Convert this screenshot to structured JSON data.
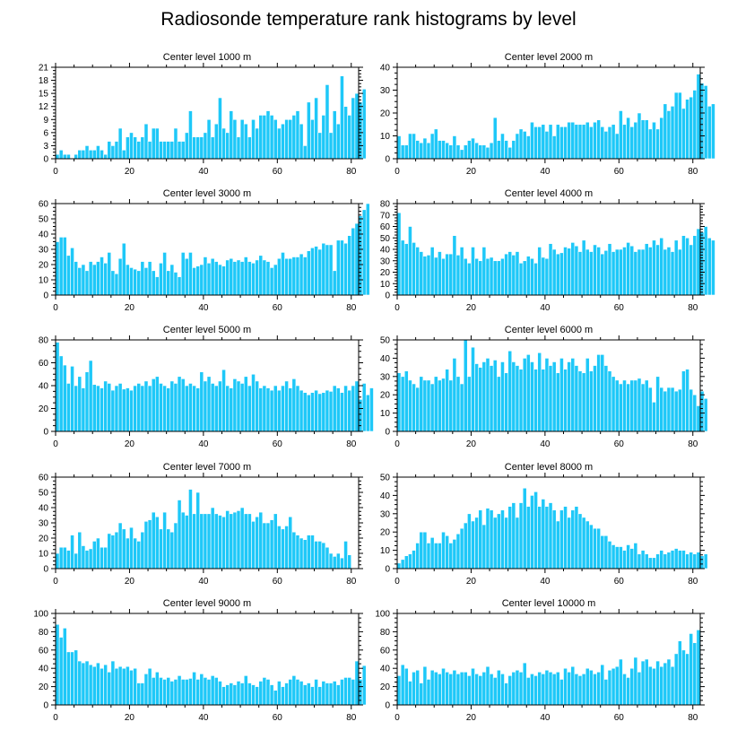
{
  "title": "Radiosonde temperature rank histograms by level",
  "colors": {
    "bar": "#1ec8f8",
    "bar_edge": "#ffffff",
    "axis": "#000000"
  },
  "chart_data": [
    {
      "type": "bar",
      "title": "Center level 1000 m",
      "xlabel": "",
      "ylabel": "",
      "xlim": [
        0,
        82
      ],
      "ylim": [
        0,
        21
      ],
      "yticks": [
        0,
        3,
        6,
        9,
        12,
        15,
        18,
        21
      ],
      "xticks": [
        0,
        20,
        40,
        60,
        80
      ],
      "values": [
        1,
        2,
        1,
        1,
        0,
        1,
        2,
        2,
        3,
        2,
        2,
        3,
        2,
        1,
        4,
        3,
        4,
        7,
        2,
        5,
        6,
        5,
        4,
        5,
        8,
        4,
        7,
        7,
        4,
        4,
        4,
        4,
        7,
        4,
        4,
        6,
        11,
        5,
        5,
        5,
        6,
        9,
        5,
        8,
        14,
        7,
        6,
        11,
        9,
        5,
        9,
        8,
        5,
        9,
        7,
        10,
        10,
        11,
        10,
        9,
        7,
        8,
        9,
        9,
        10,
        11,
        8,
        3,
        13,
        9,
        14,
        6,
        10,
        17,
        6,
        11,
        8,
        19,
        12,
        10,
        14,
        15,
        13,
        16
      ]
    },
    {
      "type": "bar",
      "title": "Center level 2000 m",
      "xlabel": "",
      "ylabel": "",
      "xlim": [
        0,
        82
      ],
      "ylim": [
        0,
        40
      ],
      "yticks": [
        0,
        10,
        20,
        30,
        40
      ],
      "xticks": [
        0,
        20,
        40,
        60,
        80
      ],
      "values": [
        10,
        6,
        6,
        11,
        11,
        8,
        7,
        9,
        7,
        11,
        13,
        8,
        8,
        7,
        6,
        10,
        6,
        4,
        6,
        8,
        9,
        7,
        6,
        6,
        5,
        7,
        18,
        8,
        11,
        8,
        5,
        8,
        11,
        13,
        12,
        10,
        16,
        14,
        14,
        15,
        12,
        15,
        10,
        15,
        14,
        14,
        16,
        16,
        15,
        15,
        15,
        16,
        14,
        16,
        17,
        14,
        12,
        14,
        15,
        11,
        21,
        15,
        18,
        14,
        16,
        20,
        17,
        17,
        13,
        16,
        13,
        18,
        24,
        21,
        23,
        29,
        29,
        22,
        26,
        27,
        30,
        37,
        33,
        32,
        23,
        24
      ]
    },
    {
      "type": "bar",
      "title": "Center level 3000 m",
      "xlabel": "",
      "ylabel": "",
      "xlim": [
        0,
        82
      ],
      "ylim": [
        0,
        60
      ],
      "yticks": [
        0,
        10,
        20,
        30,
        40,
        50,
        60
      ],
      "xticks": [
        0,
        20,
        40,
        60,
        80
      ],
      "values": [
        35,
        38,
        38,
        26,
        31,
        22,
        18,
        20,
        16,
        22,
        20,
        22,
        25,
        21,
        28,
        16,
        14,
        24,
        34,
        20,
        18,
        17,
        16,
        22,
        18,
        22,
        16,
        12,
        21,
        28,
        16,
        20,
        15,
        12,
        28,
        24,
        28,
        18,
        19,
        20,
        25,
        21,
        24,
        22,
        20,
        19,
        23,
        24,
        22,
        23,
        22,
        25,
        22,
        21,
        23,
        26,
        23,
        22,
        18,
        20,
        24,
        28,
        24,
        24,
        25,
        25,
        27,
        25,
        29,
        31,
        32,
        30,
        34,
        33,
        33,
        16,
        36,
        36,
        34,
        39,
        44,
        47,
        52,
        56,
        60
      ]
    },
    {
      "type": "bar",
      "title": "Center level 4000 m",
      "xlabel": "",
      "ylabel": "",
      "xlim": [
        0,
        82
      ],
      "ylim": [
        0,
        80
      ],
      "yticks": [
        0,
        10,
        20,
        30,
        40,
        50,
        60,
        70,
        80
      ],
      "xticks": [
        0,
        20,
        40,
        60,
        80
      ],
      "values": [
        72,
        48,
        45,
        60,
        46,
        42,
        38,
        34,
        35,
        42,
        33,
        38,
        32,
        36,
        36,
        52,
        35,
        42,
        32,
        28,
        42,
        32,
        30,
        42,
        32,
        33,
        30,
        30,
        32,
        36,
        38,
        35,
        38,
        28,
        30,
        34,
        32,
        28,
        42,
        33,
        32,
        45,
        40,
        36,
        37,
        42,
        41,
        46,
        43,
        38,
        48,
        40,
        38,
        44,
        42,
        36,
        39,
        45,
        38,
        40,
        40,
        42,
        46,
        43,
        38,
        40,
        40,
        45,
        42,
        48,
        44,
        50,
        40,
        42,
        38,
        48,
        40,
        52,
        50,
        44,
        52,
        58,
        55,
        60,
        50,
        48
      ]
    },
    {
      "type": "bar",
      "title": "Center level 5000 m",
      "xlabel": "",
      "ylabel": "",
      "xlim": [
        0,
        82
      ],
      "ylim": [
        0,
        80
      ],
      "yticks": [
        0,
        20,
        40,
        60,
        80
      ],
      "xticks": [
        0,
        20,
        40,
        60,
        80
      ],
      "values": [
        78,
        66,
        58,
        42,
        57,
        40,
        48,
        38,
        52,
        62,
        41,
        40,
        38,
        44,
        42,
        36,
        40,
        42,
        37,
        38,
        36,
        40,
        42,
        40,
        44,
        40,
        46,
        48,
        42,
        40,
        38,
        44,
        42,
        48,
        46,
        40,
        42,
        40,
        38,
        52,
        44,
        48,
        42,
        40,
        44,
        54,
        40,
        38,
        46,
        44,
        42,
        48,
        40,
        50,
        44,
        38,
        40,
        38,
        36,
        40,
        36,
        40,
        44,
        38,
        46,
        40,
        36,
        34,
        32,
        34,
        36,
        33,
        34,
        36,
        35,
        40,
        38,
        34,
        40,
        36,
        40,
        44,
        28,
        42,
        32,
        38
      ]
    },
    {
      "type": "bar",
      "title": "Center level 6000 m",
      "xlabel": "",
      "ylabel": "",
      "xlim": [
        0,
        82
      ],
      "ylim": [
        0,
        50
      ],
      "yticks": [
        0,
        10,
        20,
        30,
        40,
        50
      ],
      "xticks": [
        0,
        20,
        40,
        60,
        80
      ],
      "values": [
        32,
        30,
        33,
        28,
        26,
        24,
        30,
        28,
        28,
        26,
        30,
        28,
        29,
        34,
        28,
        40,
        30,
        26,
        50,
        30,
        46,
        37,
        35,
        38,
        40,
        36,
        39,
        30,
        38,
        32,
        44,
        38,
        36,
        34,
        40,
        42,
        38,
        34,
        43,
        34,
        40,
        36,
        38,
        32,
        40,
        34,
        38,
        40,
        36,
        33,
        32,
        40,
        33,
        36,
        42,
        42,
        36,
        33,
        30,
        28,
        26,
        28,
        26,
        28,
        28,
        29,
        26,
        28,
        24,
        16,
        30,
        24,
        22,
        24,
        24,
        22,
        23,
        33,
        34,
        23,
        20,
        14,
        22,
        18
      ]
    },
    {
      "type": "bar",
      "title": "Center level 7000 m",
      "xlabel": "",
      "ylabel": "",
      "xlim": [
        0,
        82
      ],
      "ylim": [
        0,
        60
      ],
      "yticks": [
        0,
        10,
        20,
        30,
        40,
        50,
        60
      ],
      "xticks": [
        0,
        20,
        40,
        60,
        80
      ],
      "values": [
        10,
        14,
        14,
        12,
        22,
        10,
        24,
        15,
        12,
        13,
        18,
        20,
        14,
        14,
        23,
        22,
        24,
        30,
        26,
        20,
        27,
        20,
        18,
        24,
        31,
        32,
        37,
        34,
        26,
        37,
        26,
        24,
        30,
        45,
        37,
        35,
        52,
        36,
        50,
        36,
        36,
        36,
        40,
        36,
        35,
        34,
        38,
        36,
        37,
        38,
        40,
        36,
        36,
        31,
        34,
        37,
        30,
        30,
        32,
        36,
        28,
        26,
        28,
        34,
        24,
        22,
        20,
        19,
        22,
        22,
        18,
        18,
        17,
        14,
        10,
        8,
        10,
        7,
        18,
        9
      ]
    },
    {
      "type": "bar",
      "title": "Center level 8000 m",
      "xlabel": "",
      "ylabel": "",
      "xlim": [
        0,
        82
      ],
      "ylim": [
        0,
        50
      ],
      "yticks": [
        0,
        10,
        20,
        30,
        40,
        50
      ],
      "xticks": [
        0,
        20,
        40,
        60,
        80
      ],
      "values": [
        3,
        5,
        7,
        8,
        10,
        14,
        20,
        20,
        14,
        17,
        14,
        14,
        20,
        18,
        14,
        16,
        19,
        22,
        25,
        30,
        26,
        28,
        32,
        24,
        33,
        32,
        28,
        30,
        32,
        28,
        34,
        36,
        28,
        36,
        44,
        34,
        40,
        42,
        34,
        38,
        34,
        36,
        32,
        26,
        32,
        34,
        28,
        32,
        34,
        30,
        28,
        26,
        24,
        22,
        22,
        18,
        18,
        15,
        13,
        12,
        12,
        10,
        13,
        11,
        14,
        8,
        10,
        8,
        6,
        6,
        8,
        10,
        8,
        9,
        10,
        11,
        10,
        10,
        8,
        9,
        8,
        9,
        7,
        8
      ]
    },
    {
      "type": "bar",
      "title": "Center level 9000 m",
      "xlabel": "",
      "ylabel": "",
      "xlim": [
        0,
        82
      ],
      "ylim": [
        0,
        100
      ],
      "yticks": [
        0,
        20,
        40,
        60,
        80,
        100
      ],
      "xticks": [
        0,
        20,
        40,
        60,
        80
      ],
      "values": [
        88,
        74,
        84,
        58,
        58,
        60,
        48,
        46,
        48,
        44,
        42,
        46,
        40,
        44,
        36,
        48,
        40,
        42,
        40,
        42,
        38,
        40,
        24,
        24,
        34,
        40,
        30,
        36,
        30,
        28,
        30,
        26,
        28,
        32,
        28,
        28,
        29,
        36,
        28,
        34,
        30,
        28,
        32,
        30,
        26,
        20,
        22,
        24,
        22,
        26,
        24,
        32,
        24,
        22,
        20,
        26,
        30,
        28,
        22,
        16,
        26,
        20,
        24,
        28,
        32,
        28,
        26,
        22,
        24,
        20,
        28,
        20,
        26,
        24,
        24,
        26,
        22,
        28,
        30,
        30,
        28,
        48,
        28,
        43
      ]
    },
    {
      "type": "bar",
      "title": "Center level 10000 m",
      "xlabel": "",
      "ylabel": "",
      "xlim": [
        0,
        82
      ],
      "ylim": [
        0,
        100
      ],
      "yticks": [
        0,
        20,
        40,
        60,
        80,
        100
      ],
      "xticks": [
        0,
        20,
        40,
        60,
        80
      ],
      "values": [
        32,
        44,
        40,
        26,
        36,
        38,
        24,
        42,
        28,
        38,
        36,
        34,
        40,
        36,
        34,
        38,
        34,
        36,
        36,
        32,
        40,
        34,
        32,
        36,
        42,
        34,
        30,
        38,
        34,
        24,
        32,
        36,
        38,
        36,
        46,
        30,
        34,
        32,
        36,
        34,
        38,
        36,
        34,
        36,
        28,
        40,
        36,
        42,
        34,
        32,
        34,
        40,
        38,
        34,
        36,
        44,
        28,
        38,
        40,
        42,
        50,
        34,
        30,
        40,
        52,
        36,
        48,
        50,
        42,
        40,
        48,
        42,
        46,
        50,
        42,
        56,
        70,
        60,
        56,
        78,
        68,
        82
      ]
    }
  ]
}
